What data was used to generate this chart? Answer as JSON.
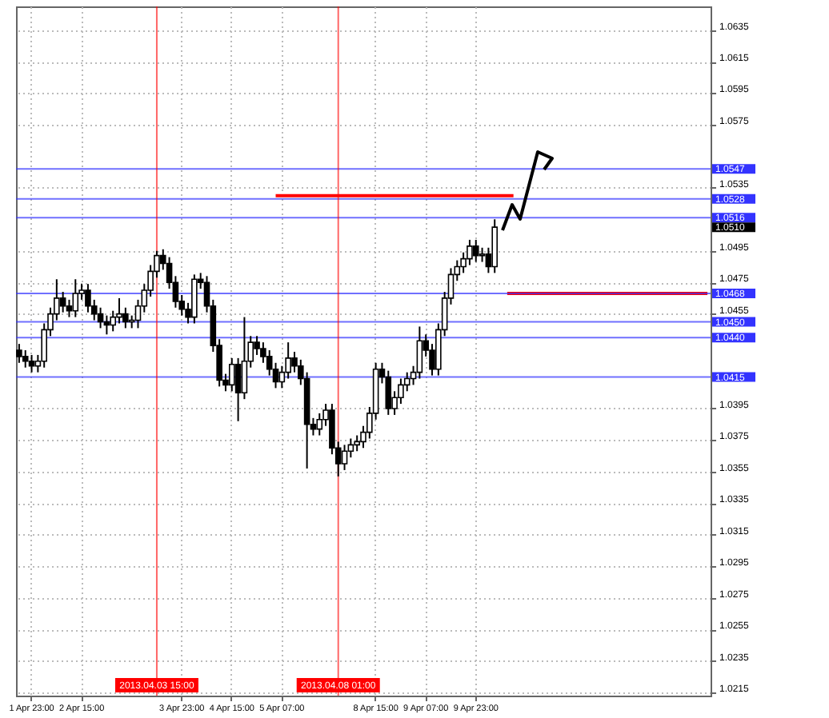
{
  "chart_data": {
    "type": "candlestick",
    "color": "#000000",
    "categories": [
      null,
      null,
      "1 Apr 23:00",
      null,
      null,
      null,
      null,
      null,
      null,
      null,
      "2 Apr 15:00",
      null,
      null,
      null,
      null,
      null,
      null,
      null,
      null,
      null,
      null,
      null,
      "2013.04.03 15:00",
      null,
      null,
      null,
      "3 Apr 23:00",
      null,
      null,
      null,
      null,
      null,
      null,
      null,
      "4 Apr 15:00",
      null,
      null,
      null,
      null,
      null,
      null,
      null,
      "5 Apr 07:00",
      null,
      null,
      null,
      null,
      null,
      null,
      null,
      null,
      "2013.04.08 01:00",
      null,
      null,
      null,
      null,
      null,
      "8 Apr 15:00",
      null,
      null,
      null,
      null,
      null,
      null,
      null,
      "9 Apr 07:00",
      null,
      null,
      null,
      null,
      null,
      null,
      null,
      "9 Apr 23:00",
      null,
      null,
      null,
      null,
      null,
      null,
      null,
      null,
      null,
      null,
      null,
      null,
      null,
      null,
      null,
      null,
      null,
      null,
      null,
      null,
      null,
      null,
      null,
      null,
      null,
      null,
      null,
      null,
      null,
      null,
      null,
      null,
      null,
      null,
      null,
      null,
      null
    ],
    "ohlc": [
      [
        1.0432,
        1.0436,
        1.0424,
        1.0428
      ],
      [
        1.0428,
        1.0432,
        1.0421,
        1.0425
      ],
      [
        1.0425,
        1.0429,
        1.0418,
        1.0422
      ],
      [
        1.0422,
        1.0429,
        1.0418,
        1.0425
      ],
      [
        1.0425,
        1.0449,
        1.0421,
        1.0445
      ],
      [
        1.0445,
        1.0459,
        1.0441,
        1.0455
      ],
      [
        1.0455,
        1.0477,
        1.0451,
        1.0465
      ],
      [
        1.0465,
        1.0469,
        1.0456,
        1.046
      ],
      [
        1.046,
        1.0464,
        1.0453,
        1.0457
      ],
      [
        1.0457,
        1.0477,
        1.0453,
        1.0468
      ],
      [
        1.0468,
        1.0474,
        1.0464,
        1.047
      ],
      [
        1.047,
        1.0474,
        1.0456,
        1.046
      ],
      [
        1.046,
        1.0464,
        1.0451,
        1.0455
      ],
      [
        1.0455,
        1.0459,
        1.0446,
        1.045
      ],
      [
        1.045,
        1.0454,
        1.0442,
        1.0448
      ],
      [
        1.0448,
        1.0457,
        1.0444,
        1.0453
      ],
      [
        1.0453,
        1.0465,
        1.0449,
        1.0455
      ],
      [
        1.0455,
        1.0459,
        1.0446,
        1.045
      ],
      [
        1.045,
        1.0454,
        1.0446,
        1.0451
      ],
      [
        1.0451,
        1.0464,
        1.0446,
        1.046
      ],
      [
        1.046,
        1.0474,
        1.0456,
        1.047
      ],
      [
        1.047,
        1.0486,
        1.0466,
        1.0482
      ],
      [
        1.0482,
        1.0495,
        1.0478,
        1.0492
      ],
      [
        1.0492,
        1.0496,
        1.0483,
        1.0487
      ],
      [
        1.0487,
        1.0491,
        1.0471,
        1.0475
      ],
      [
        1.0475,
        1.0479,
        1.0459,
        1.0463
      ],
      [
        1.0463,
        1.0467,
        1.0454,
        1.0458
      ],
      [
        1.0458,
        1.0462,
        1.0449,
        1.0453
      ],
      [
        1.0453,
        1.048,
        1.0449,
        1.0477
      ],
      [
        1.0477,
        1.0481,
        1.0471,
        1.0475
      ],
      [
        1.0475,
        1.0479,
        1.0456,
        1.046
      ],
      [
        1.046,
        1.0464,
        1.0431,
        1.0435
      ],
      [
        1.0435,
        1.0439,
        1.0409,
        1.0413
      ],
      [
        1.0413,
        1.0417,
        1.0406,
        1.041
      ],
      [
        1.041,
        1.0427,
        1.0406,
        1.0423
      ],
      [
        1.0423,
        1.0427,
        1.0387,
        1.0405
      ],
      [
        1.0405,
        1.0453,
        1.0401,
        1.0425
      ],
      [
        1.0425,
        1.0441,
        1.0421,
        1.0437
      ],
      [
        1.0437,
        1.0441,
        1.0429,
        1.0433
      ],
      [
        1.0433,
        1.0437,
        1.0424,
        1.0428
      ],
      [
        1.0428,
        1.0432,
        1.0416,
        1.042
      ],
      [
        1.042,
        1.0424,
        1.0408,
        1.0412
      ],
      [
        1.0412,
        1.0422,
        1.0408,
        1.0418
      ],
      [
        1.0418,
        1.0437,
        1.0414,
        1.0427
      ],
      [
        1.0427,
        1.0431,
        1.0418,
        1.0422
      ],
      [
        1.0422,
        1.0426,
        1.041,
        1.0414
      ],
      [
        1.0414,
        1.0418,
        1.0357,
        1.0385
      ],
      [
        1.0385,
        1.0389,
        1.0378,
        1.0382
      ],
      [
        1.0382,
        1.0392,
        1.0378,
        1.0388
      ],
      [
        1.0388,
        1.0398,
        1.0384,
        1.0394
      ],
      [
        1.0394,
        1.0398,
        1.0366,
        1.037
      ],
      [
        1.037,
        1.0374,
        1.0352,
        1.036
      ],
      [
        1.036,
        1.0372,
        1.0356,
        1.0368
      ],
      [
        1.0368,
        1.0376,
        1.0364,
        1.0372
      ],
      [
        1.0372,
        1.0378,
        1.0368,
        1.0374
      ],
      [
        1.0374,
        1.0384,
        1.037,
        1.038
      ],
      [
        1.038,
        1.0396,
        1.0376,
        1.0392
      ],
      [
        1.0392,
        1.0424,
        1.0388,
        1.042
      ],
      [
        1.042,
        1.0424,
        1.0411,
        1.0415
      ],
      [
        1.0415,
        1.0419,
        1.0391,
        1.0395
      ],
      [
        1.0395,
        1.0406,
        1.0391,
        1.0402
      ],
      [
        1.0402,
        1.0414,
        1.0398,
        1.041
      ],
      [
        1.041,
        1.0418,
        1.0406,
        1.0414
      ],
      [
        1.0414,
        1.0422,
        1.041,
        1.0418
      ],
      [
        1.0418,
        1.0447,
        1.0414,
        1.0438
      ],
      [
        1.0438,
        1.0442,
        1.0428,
        1.0432
      ],
      [
        1.0432,
        1.0436,
        1.0416,
        1.042
      ],
      [
        1.042,
        1.0449,
        1.0416,
        1.0445
      ],
      [
        1.0445,
        1.0469,
        1.0441,
        1.0465
      ],
      [
        1.0465,
        1.0484,
        1.0461,
        1.048
      ],
      [
        1.048,
        1.0489,
        1.0476,
        1.0485
      ],
      [
        1.0485,
        1.0494,
        1.0481,
        1.049
      ],
      [
        1.049,
        1.0502,
        1.0486,
        1.0498
      ],
      [
        1.0498,
        1.0502,
        1.0488,
        1.0492
      ],
      [
        1.0492,
        1.0497,
        1.0488,
        1.0493
      ],
      [
        1.0493,
        1.0497,
        1.0481,
        1.0485
      ],
      [
        1.0485,
        1.0515,
        1.0481,
        1.051
      ],
      null,
      null,
      null,
      null,
      null,
      null,
      null,
      null,
      null,
      null,
      null,
      null,
      null,
      null,
      null,
      null,
      null,
      null,
      null,
      null,
      null,
      null,
      null,
      null,
      null,
      null,
      null,
      null,
      null,
      null,
      null,
      null,
      null,
      null
    ],
    "series": [
      {
        "type": "line",
        "color": "#ff0000",
        "values": [
          null,
          null,
          null,
          null,
          null,
          null,
          null,
          null,
          null,
          null,
          null,
          null,
          null,
          null,
          null,
          null,
          null,
          null,
          null,
          null,
          null,
          null,
          null,
          null,
          null,
          null,
          null,
          null,
          null,
          null,
          null,
          null,
          null,
          null,
          null,
          null,
          null,
          null,
          null,
          null,
          null,
          1.053,
          1.053,
          1.053,
          1.053,
          1.053,
          1.053,
          1.053,
          1.053,
          1.053,
          1.053,
          1.053,
          1.053,
          1.053,
          1.053,
          1.053,
          1.053,
          1.053,
          1.053,
          1.053,
          1.053,
          1.053,
          1.053,
          1.053,
          1.053,
          1.053,
          1.053,
          1.053,
          1.053,
          1.053,
          1.053,
          1.053,
          1.053,
          1.053,
          1.053,
          1.053,
          1.053,
          1.053,
          1.053,
          1.053,
          null,
          null,
          null,
          null,
          null,
          null,
          null,
          null,
          null,
          null,
          null,
          null,
          null,
          null,
          null,
          null,
          null,
          null,
          null,
          null,
          null,
          null,
          null,
          null,
          null,
          null,
          null,
          null,
          null,
          null,
          null
        ]
      },
      {
        "type": "line",
        "color": "#ff0000",
        "values": [
          null,
          null,
          null,
          null,
          null,
          null,
          null,
          null,
          null,
          null,
          null,
          null,
          null,
          null,
          null,
          null,
          null,
          null,
          null,
          null,
          null,
          null,
          null,
          null,
          null,
          null,
          null,
          null,
          null,
          null,
          null,
          null,
          null,
          null,
          null,
          null,
          null,
          null,
          null,
          null,
          null,
          null,
          null,
          null,
          null,
          null,
          null,
          null,
          null,
          null,
          null,
          null,
          null,
          null,
          null,
          null,
          null,
          null,
          null,
          null,
          null,
          null,
          null,
          null,
          null,
          null,
          null,
          null,
          null,
          null,
          null,
          null,
          null,
          null,
          null,
          null,
          null,
          null,
          1.0468,
          1.0468,
          1.0468,
          1.0468,
          1.0468,
          1.0468,
          1.0468,
          1.0468,
          1.0468,
          1.0468,
          1.0468,
          1.0468,
          1.0468,
          1.0468,
          1.0468,
          1.0468,
          1.0468,
          1.0468,
          1.0468,
          1.0468,
          1.0468,
          1.0468,
          1.0468,
          1.0468,
          1.0468,
          1.0468,
          1.0468,
          1.0468,
          1.0468,
          1.0468,
          1.0468,
          1.0468,
          1.0468
        ]
      }
    ],
    "ylim": [
      1.0213,
      1.065
    ],
    "yticks": [
      1.0635,
      1.0615,
      1.0595,
      1.0575,
      1.0535,
      1.0495,
      1.0475,
      1.0455,
      1.0395,
      1.0375,
      1.0355,
      1.0335,
      1.0315,
      1.0295,
      1.0275,
      1.0255,
      1.0235,
      1.0215
    ],
    "grid": true,
    "ref_lines": [
      {
        "axis": "y",
        "value": 1.0547,
        "label": "1.0547",
        "color": "#3333ff"
      },
      {
        "axis": "y",
        "value": 1.0528,
        "label": "1.0528",
        "color": "#3333ff"
      },
      {
        "axis": "y",
        "value": 1.0516,
        "label": "1.0516",
        "color": "#3333ff"
      },
      {
        "axis": "y",
        "value": 1.0468,
        "label": "1.0468",
        "color": "#3333ff"
      },
      {
        "axis": "y",
        "value": 1.045,
        "label": "1.0450",
        "color": "#3333ff"
      },
      {
        "axis": "y",
        "value": 1.044,
        "label": "1.0440",
        "color": "#3333ff"
      },
      {
        "axis": "y",
        "value": 1.0415,
        "label": "1.0415",
        "color": "#3333ff"
      },
      {
        "axis": "x",
        "value": "2013.04.03 15:00",
        "color": "#ff0000"
      },
      {
        "axis": "x",
        "value": "2013.04.08 01:00",
        "color": "#ff0000"
      }
    ],
    "annotations": [
      "1.0510"
    ]
  }
}
